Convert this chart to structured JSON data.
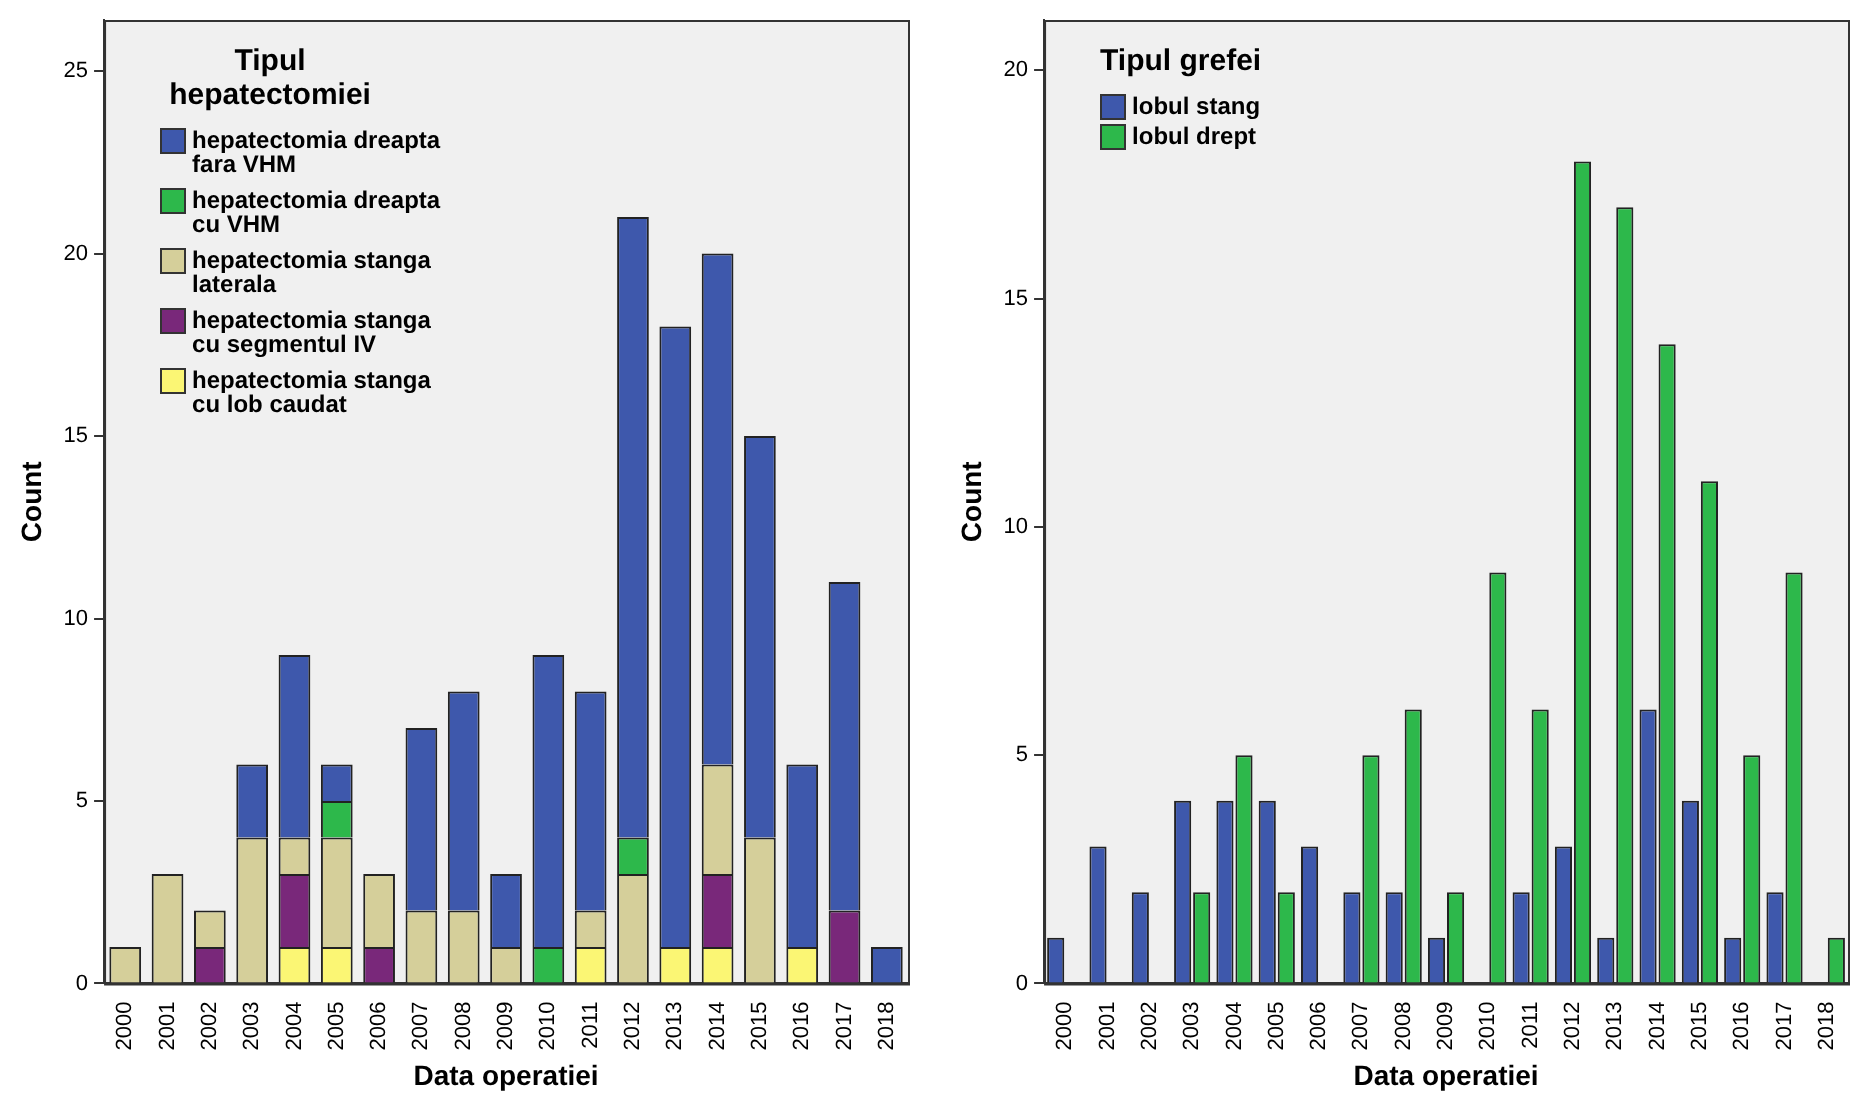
{
  "chart_data": [
    {
      "type": "bar",
      "stacked": true,
      "legend_title": "Tipul hepatectomiei",
      "legend": "top left",
      "xlabel": "Data operatiei",
      "ylabel": "Count",
      "categories": [
        "2000",
        "2001",
        "2002",
        "2003",
        "2004",
        "2005",
        "2006",
        "2007",
        "2008",
        "2009",
        "2010",
        "2011",
        "2012",
        "2013",
        "2014",
        "2015",
        "2016",
        "2017",
        "2018"
      ],
      "ylim": [
        0,
        26.4
      ],
      "yticks": [
        0,
        5,
        10,
        15,
        20,
        25
      ],
      "grid": false,
      "series": [
        {
          "name": "hepatectomia stanga cu lob caudat",
          "color": "#fbf674",
          "values": [
            0,
            0,
            0,
            0,
            1,
            1,
            0,
            0,
            0,
            0,
            0,
            1,
            0,
            1,
            1,
            0,
            1,
            0,
            0
          ]
        },
        {
          "name": "hepatectomia stanga cu segmentul IV",
          "color": "#79287a",
          "values": [
            0,
            0,
            1,
            0,
            2,
            0,
            1,
            0,
            0,
            0,
            0,
            0,
            0,
            0,
            2,
            0,
            0,
            2,
            0
          ]
        },
        {
          "name": "hepatectomia stanga laterala",
          "color": "#d5cf9a",
          "values": [
            1,
            3,
            1,
            4,
            1,
            3,
            2,
            2,
            2,
            1,
            0,
            1,
            3,
            0,
            3,
            4,
            0,
            0,
            0
          ]
        },
        {
          "name": "hepatectomia dreapta cu VHM",
          "color": "#2db84b",
          "values": [
            0,
            0,
            0,
            0,
            0,
            1,
            0,
            0,
            0,
            0,
            1,
            0,
            1,
            0,
            0,
            0,
            0,
            0,
            0
          ]
        },
        {
          "name": "hepatectomia dreapta fara VHM",
          "color": "#3e58ac",
          "values": [
            0,
            0,
            0,
            2,
            5,
            1,
            0,
            5,
            6,
            2,
            8,
            6,
            17,
            17,
            14,
            11,
            5,
            9,
            1
          ]
        }
      ]
    },
    {
      "type": "bar",
      "legend_title": "Tipul grefei",
      "legend": "top left",
      "xlabel": "Data operatiei",
      "ylabel": "Count",
      "categories": [
        "2000",
        "2001",
        "2002",
        "2003",
        "2004",
        "2005",
        "2006",
        "2007",
        "2008",
        "2009",
        "2010",
        "2011",
        "2012",
        "2013",
        "2014",
        "2015",
        "2016",
        "2017",
        "2018"
      ],
      "ylim": [
        0,
        21.1
      ],
      "yticks": [
        0,
        5,
        10,
        15,
        20
      ],
      "grid": false,
      "series": [
        {
          "name": "lobul stang",
          "color": "#3e58ac",
          "values": [
            1,
            3,
            2,
            4,
            4,
            4,
            3,
            2,
            2,
            1,
            0,
            2,
            3,
            1,
            6,
            4,
            1,
            2,
            0
          ]
        },
        {
          "name": "lobul drept",
          "color": "#2db84b",
          "values": [
            0,
            0,
            0,
            2,
            5,
            2,
            0,
            5,
            6,
            2,
            9,
            6,
            18,
            17,
            14,
            11,
            5,
            9,
            1
          ]
        }
      ]
    }
  ]
}
